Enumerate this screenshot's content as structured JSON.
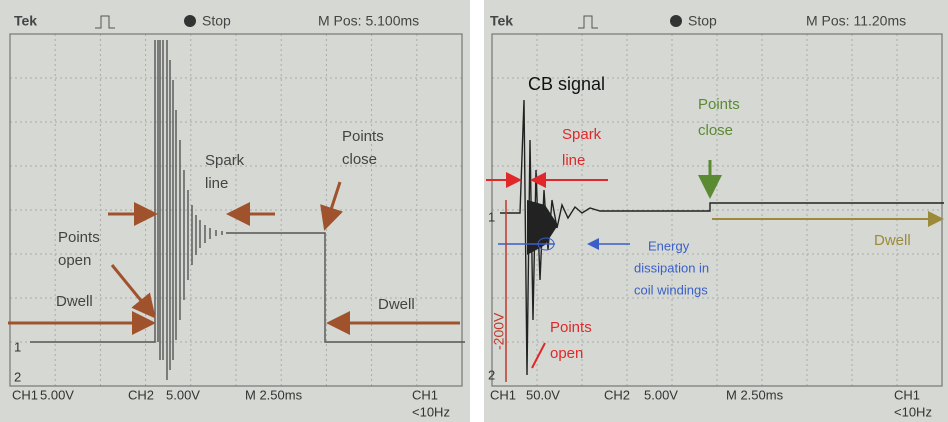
{
  "left": {
    "header": {
      "brand": "Tek",
      "status": "Stop",
      "position": "M Pos: 5.100ms"
    },
    "annotations": {
      "spark": [
        "Spark",
        "line"
      ],
      "close": [
        "Points",
        "close"
      ],
      "open": [
        "Points",
        "open"
      ],
      "dwell_left": "Dwell",
      "dwell_right": "Dwell"
    },
    "markers": {
      "ch1": "1",
      "ch2": "2"
    },
    "footer": {
      "ch1": "CH1",
      "ch1_scale": "5.00V",
      "ch2": "CH2",
      "ch2_scale": "5.00V",
      "time": "M 2.50ms",
      "trigger": "CH1",
      "freq": "<10Hz"
    }
  },
  "right": {
    "header": {
      "brand": "Tek",
      "status": "Stop",
      "position": "M Pos: 11.20ms"
    },
    "annotations": {
      "signal": "CB signal",
      "spark": [
        "Spark",
        "line"
      ],
      "close": [
        "Points",
        "close"
      ],
      "dwell": "Dwell",
      "energy": [
        "Energy",
        "dissipation in",
        "coil windings"
      ],
      "voltage": "-200V",
      "open": [
        "Points",
        "open"
      ]
    },
    "markers": {
      "ch1": "1",
      "ch2": "2"
    },
    "footer": {
      "ch1": "CH1",
      "ch1_scale": "50.0V",
      "ch2": "CH2",
      "ch2_scale": "5.00V",
      "time": "M 2.50ms",
      "trigger": "CH1",
      "freq": "<10Hz"
    }
  }
}
